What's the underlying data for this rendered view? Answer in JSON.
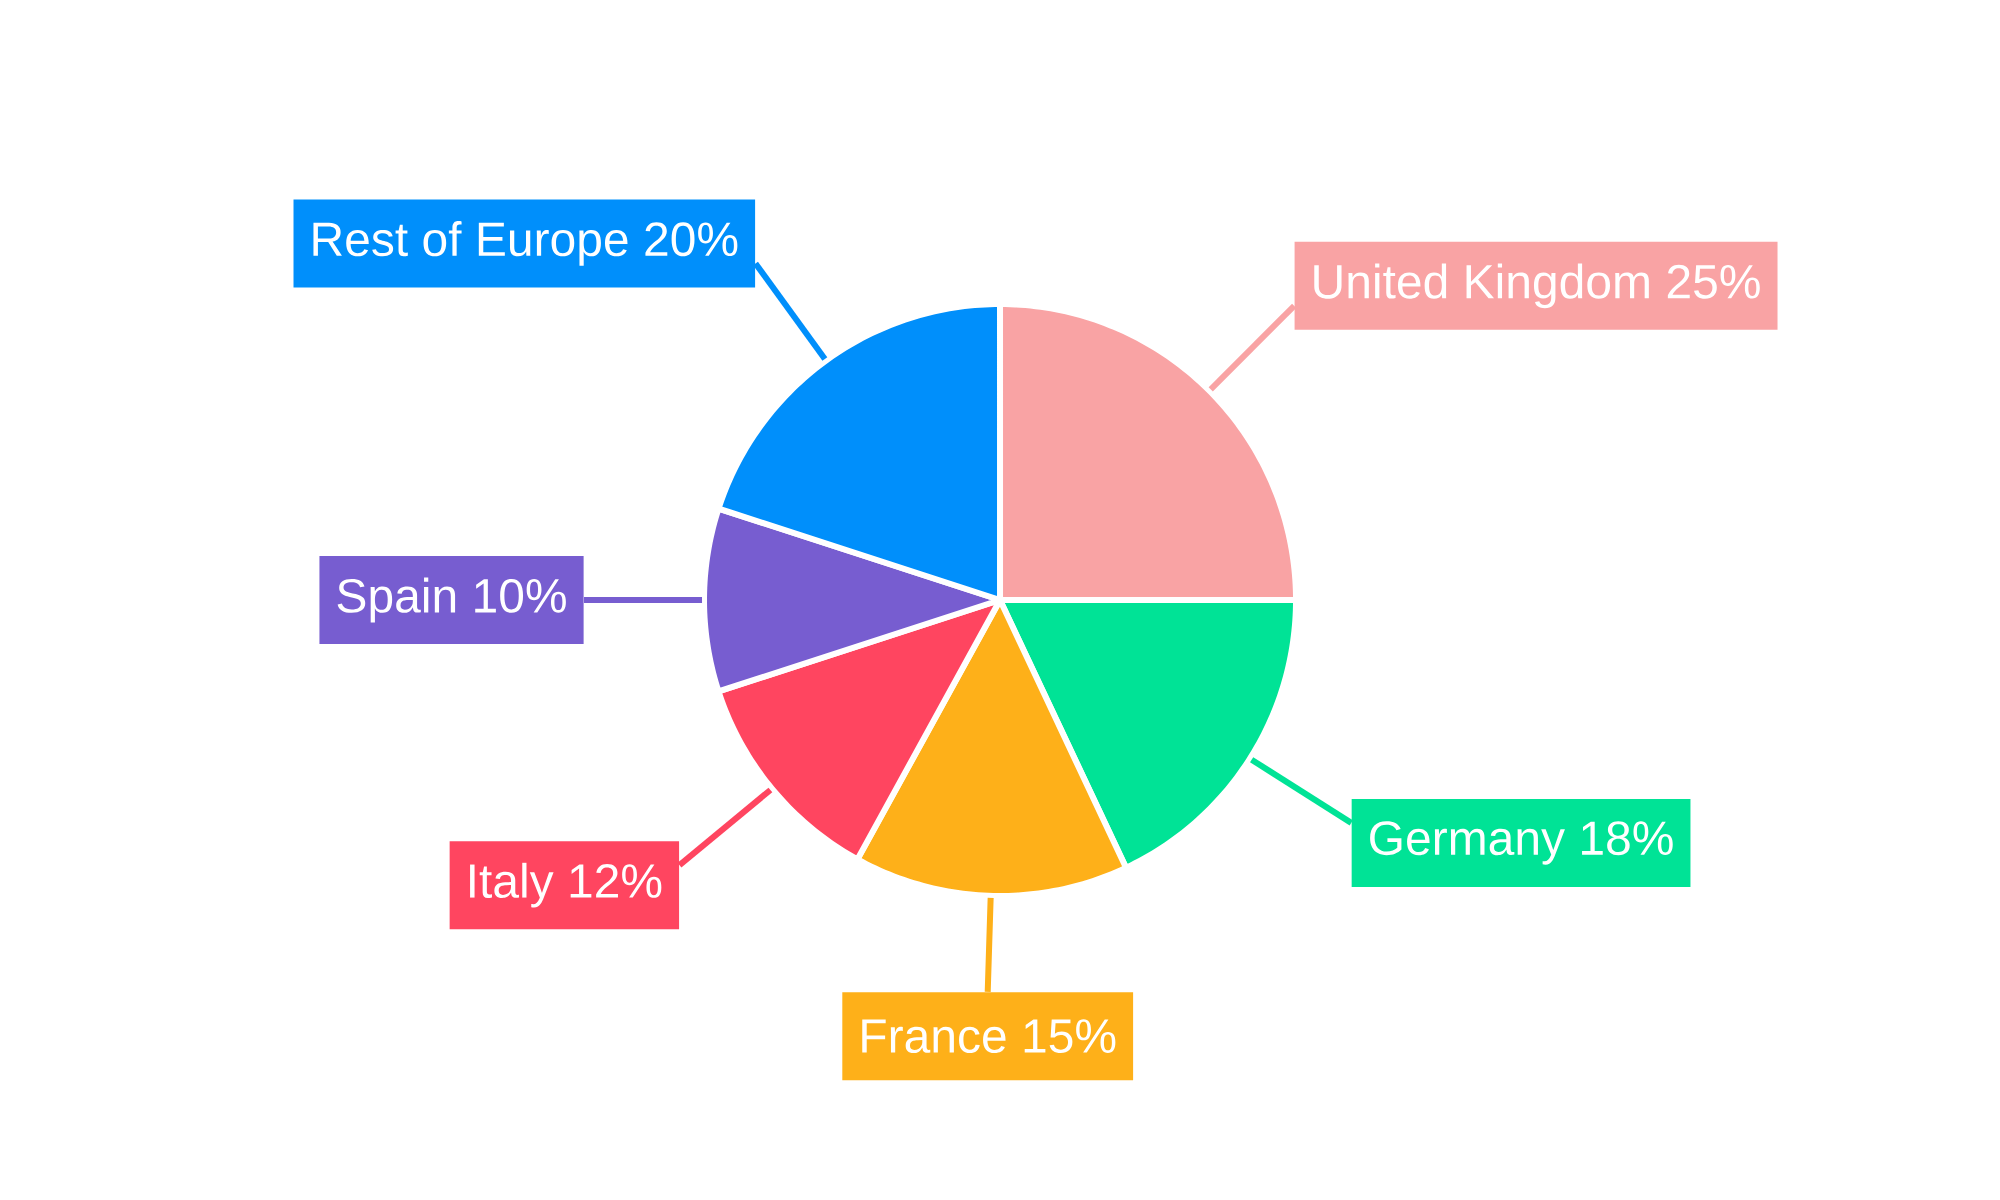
{
  "chart_data": {
    "type": "pie",
    "categories": [
      "United Kingdom",
      "Germany",
      "France",
      "Italy",
      "Spain",
      "Rest of Europe"
    ],
    "values": [
      25,
      18,
      15,
      12,
      10,
      20
    ],
    "value_labels": [
      "25%",
      "18%",
      "15%",
      "12%",
      "10%",
      "20%"
    ],
    "colors": [
      "#f9a3a4",
      "#00e396",
      "#feb019",
      "#ff4560",
      "#775dd0",
      "#008ffb"
    ]
  }
}
